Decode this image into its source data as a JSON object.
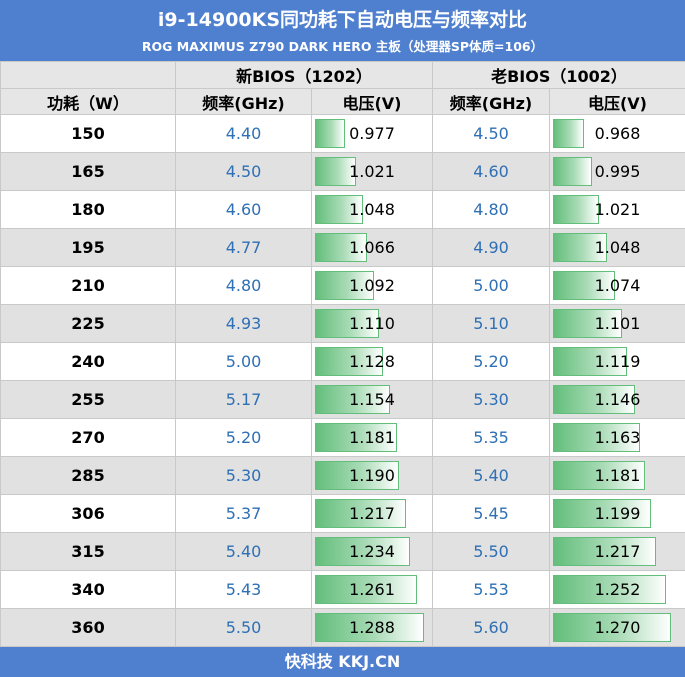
{
  "header": {
    "title": "i9-14900KS同功耗下自动电压与频率对比",
    "subtitle": "ROG MAXIMUS Z790 DARK HERO 主板（处理器SP体质=106）"
  },
  "columns": {
    "new_bios": "新BIOS（1202）",
    "old_bios": "老BIOS（1002）",
    "power": "功耗（W）",
    "freq_new": "频率(GHz)",
    "volt_new": "电压(V)",
    "freq_old": "频率(GHz)",
    "volt_old": "电压(V)"
  },
  "chart_data": {
    "type": "table",
    "title": "i9-14900KS同功耗下自动电压与频率对比",
    "subtitle": "ROG MAXIMUS Z790 DARK HERO 主板（处理器SP体质=106）",
    "columns": [
      "功耗（W）",
      "新BIOS（1202） 频率(GHz)",
      "新BIOS（1202） 电压(V)",
      "老BIOS（1002） 频率(GHz)",
      "老BIOS（1002） 电压(V)"
    ],
    "rows": [
      {
        "power": "150",
        "new_freq": "4.40",
        "new_volt": "0.977",
        "old_freq": "4.50",
        "old_volt": "0.968"
      },
      {
        "power": "165",
        "new_freq": "4.50",
        "new_volt": "1.021",
        "old_freq": "4.60",
        "old_volt": "0.995"
      },
      {
        "power": "180",
        "new_freq": "4.60",
        "new_volt": "1.048",
        "old_freq": "4.80",
        "old_volt": "1.021"
      },
      {
        "power": "195",
        "new_freq": "4.77",
        "new_volt": "1.066",
        "old_freq": "4.90",
        "old_volt": "1.048"
      },
      {
        "power": "210",
        "new_freq": "4.80",
        "new_volt": "1.092",
        "old_freq": "5.00",
        "old_volt": "1.074"
      },
      {
        "power": "225",
        "new_freq": "4.93",
        "new_volt": "1.110",
        "old_freq": "5.10",
        "old_volt": "1.101"
      },
      {
        "power": "240",
        "new_freq": "5.00",
        "new_volt": "1.128",
        "old_freq": "5.20",
        "old_volt": "1.119"
      },
      {
        "power": "255",
        "new_freq": "5.17",
        "new_volt": "1.154",
        "old_freq": "5.30",
        "old_volt": "1.146"
      },
      {
        "power": "270",
        "new_freq": "5.20",
        "new_volt": "1.181",
        "old_freq": "5.35",
        "old_volt": "1.163"
      },
      {
        "power": "285",
        "new_freq": "5.30",
        "new_volt": "1.190",
        "old_freq": "5.40",
        "old_volt": "1.181"
      },
      {
        "power": "306",
        "new_freq": "5.37",
        "new_volt": "1.217",
        "old_freq": "5.45",
        "old_volt": "1.199"
      },
      {
        "power": "315",
        "new_freq": "5.40",
        "new_volt": "1.234",
        "old_freq": "5.50",
        "old_volt": "1.217"
      },
      {
        "power": "340",
        "new_freq": "5.43",
        "new_volt": "1.261",
        "old_freq": "5.53",
        "old_volt": "1.252"
      },
      {
        "power": "360",
        "new_freq": "5.50",
        "new_volt": "1.288",
        "old_freq": "5.60",
        "old_volt": "1.270"
      }
    ]
  },
  "footer": {
    "text": "快科技 KKJ.CN"
  },
  "colors": {
    "header_bg": "#4f7fcf",
    "bar_green": "#63be7b",
    "freq_text": "#2e6fb5",
    "row_alt": "#e1e1e1"
  }
}
